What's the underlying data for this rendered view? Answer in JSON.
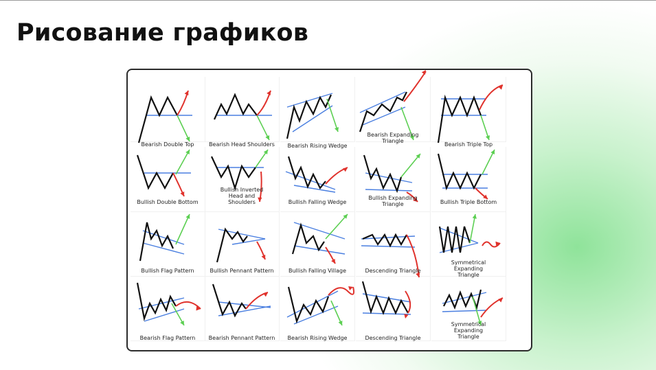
{
  "title": "Рисование графиков",
  "colors": {
    "price": "#111111",
    "trendline": "#4a7fe0",
    "up": "#5ccf52",
    "down": "#e0322c"
  },
  "patterns": [
    {
      "label": "Bearish Double Top"
    },
    {
      "label": "Bearish Head Shoulders"
    },
    {
      "label": "Bearish Rising Wedge"
    },
    {
      "label": "Bearish Expanding Triangle"
    },
    {
      "label": "Bearish Triple Top"
    },
    {
      "label": "Bullish Double Bottom"
    },
    {
      "label": "Bullish Inverted Head and Shoulders"
    },
    {
      "label": "Bullish Falling Wedge"
    },
    {
      "label": "Bullish Expanding Triangle"
    },
    {
      "label": "Bullish Triple Bottom"
    },
    {
      "label": "Bullish Flag Pattern"
    },
    {
      "label": "Bullish Pennant Pattern"
    },
    {
      "label": "Bullish Falling Village"
    },
    {
      "label": "Descending Triangle"
    },
    {
      "label": "Symmetrical Expanding Triangle"
    },
    {
      "label": "Bearish Flag Pattern"
    },
    {
      "label": "Bearish Pennant Pattern"
    },
    {
      "label": "Bearish Rising Wedge"
    },
    {
      "label": "Descending Triangle"
    },
    {
      "label": "Symmetrical Expanding Triangle"
    }
  ]
}
